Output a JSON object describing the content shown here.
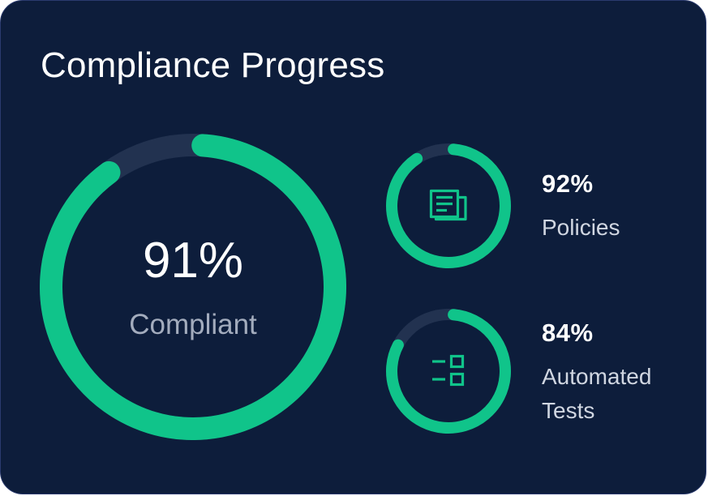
{
  "card": {
    "title": "Compliance Progress"
  },
  "colors": {
    "background": "#0d1d3b",
    "accent": "#10c48a",
    "track": "#223250",
    "muted_text": "#a3acbd"
  },
  "overall": {
    "value_label": "91%",
    "fraction": 0.91,
    "label": "Compliant"
  },
  "metrics": [
    {
      "value_label": "92%",
      "fraction": 0.92,
      "label": "Policies",
      "icon": "document-icon"
    },
    {
      "value_label": "84%",
      "fraction": 0.84,
      "label": "Automated Tests",
      "icon": "checklist-icon"
    }
  ]
}
